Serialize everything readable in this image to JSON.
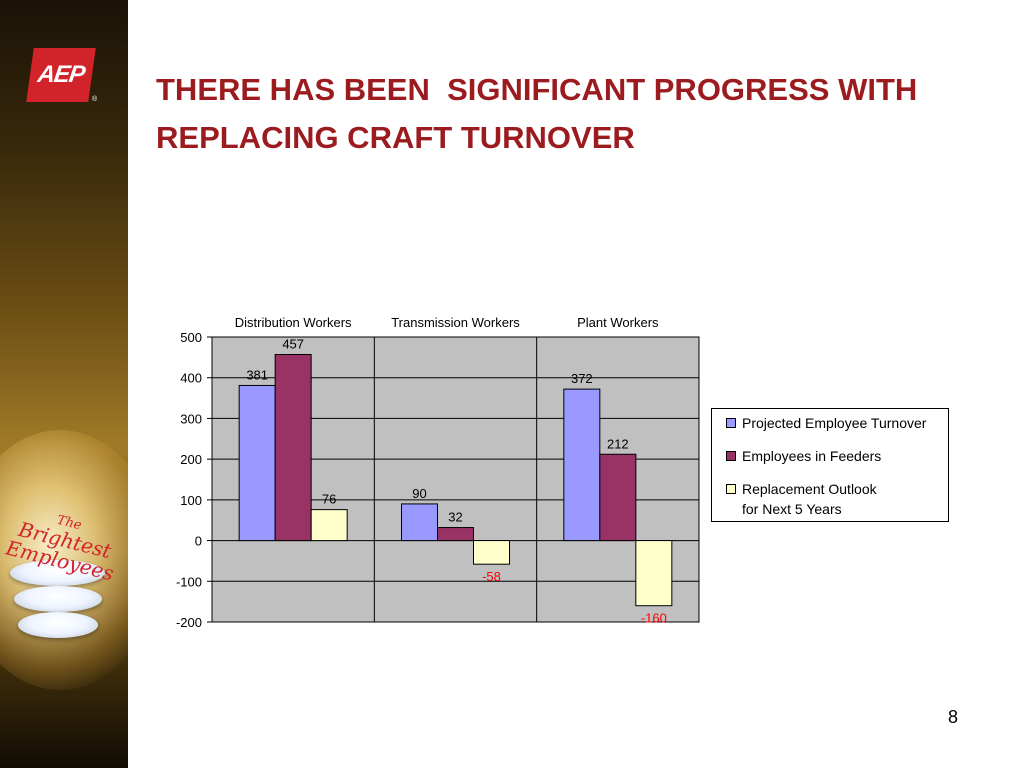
{
  "branding": {
    "logo_text": "AEP",
    "logo_reg": "®",
    "tagline": [
      "The",
      "Brightest",
      "Employees"
    ]
  },
  "slide": {
    "title_lines": [
      "THERE HAS BEEN  SIGNIFICANT PROGRESS WITH",
      "REPLACING CRAFT TURNOVER"
    ],
    "page_number": "8"
  },
  "colors": {
    "title": "#9b1b1f",
    "plot_bg": "#c0c0c0",
    "negative_label": "#ff0000"
  },
  "chart_data": {
    "type": "bar",
    "categories": [
      "Distribution Workers",
      "Transmission Workers",
      "Plant Workers"
    ],
    "series": [
      {
        "name": "Projected Employee Turnover",
        "color": "#9999ff",
        "values": [
          381,
          90,
          372
        ]
      },
      {
        "name": "Employees in Feeders",
        "color": "#993366",
        "values": [
          457,
          32,
          212
        ]
      },
      {
        "name": "Replacement Outlook\nfor Next 5 Years",
        "color": "#ffffcc",
        "values": [
          76,
          -58,
          -160
        ]
      }
    ],
    "data_labels": [
      [
        "381",
        "90",
        "372"
      ],
      [
        "457",
        "32",
        "212"
      ],
      [
        "76",
        "-58",
        "-160"
      ]
    ],
    "ylim": [
      -200,
      500
    ],
    "yticks": [
      500,
      400,
      300,
      200,
      100,
      0,
      -100,
      -200
    ],
    "ytick_labels": [
      "500",
      "400",
      "300",
      "200",
      "100",
      "0",
      "-100",
      "-200"
    ],
    "category_axis_position": "top",
    "grid": true,
    "legend_position": "right"
  }
}
